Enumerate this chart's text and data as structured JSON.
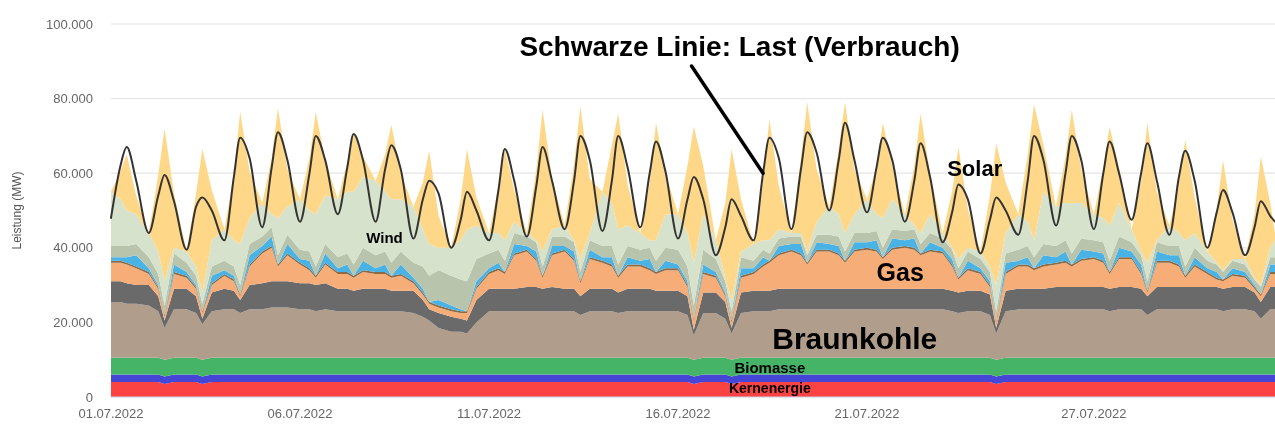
{
  "chart_data": {
    "type": "area",
    "stacked": true,
    "x": [
      "2022-07-01T00:00",
      "2022-07-01T06:00",
      "2022-07-01T10:00",
      "2022-07-01T16:00",
      "2022-07-02T00:00",
      "2022-07-02T06:00",
      "2022-07-02T10:00",
      "2022-07-02T16:00",
      "2022-07-03T00:00",
      "2022-07-03T06:00",
      "2022-07-03T10:00",
      "2022-07-03T16:00",
      "2022-07-04T00:00",
      "2022-07-04T06:00",
      "2022-07-04T10:00",
      "2022-07-04T16:00",
      "2022-07-05T00:00",
      "2022-07-05T06:00",
      "2022-07-05T10:00",
      "2022-07-05T16:00",
      "2022-07-06T00:00",
      "2022-07-06T06:00",
      "2022-07-06T10:00",
      "2022-07-06T16:00",
      "2022-07-07T00:00",
      "2022-07-07T06:00",
      "2022-07-07T10:00",
      "2022-07-07T16:00",
      "2022-07-08T00:00",
      "2022-07-08T06:00",
      "2022-07-08T10:00",
      "2022-07-08T16:00",
      "2022-07-09T00:00",
      "2022-07-09T06:00",
      "2022-07-09T10:00",
      "2022-07-09T16:00",
      "2022-07-10T00:00",
      "2022-07-10T06:00",
      "2022-07-10T10:00",
      "2022-07-10T16:00",
      "2022-07-11T00:00",
      "2022-07-11T06:00",
      "2022-07-11T10:00",
      "2022-07-11T16:00",
      "2022-07-12T00:00",
      "2022-07-12T06:00",
      "2022-07-12T10:00",
      "2022-07-12T16:00",
      "2022-07-13T00:00",
      "2022-07-13T06:00",
      "2022-07-13T10:00",
      "2022-07-13T16:00",
      "2022-07-14T00:00",
      "2022-07-14T06:00",
      "2022-07-14T10:00",
      "2022-07-14T16:00",
      "2022-07-15T00:00",
      "2022-07-15T06:00",
      "2022-07-15T10:00",
      "2022-07-15T16:00",
      "2022-07-16T00:00",
      "2022-07-16T06:00",
      "2022-07-16T10:00",
      "2022-07-16T16:00",
      "2022-07-17T00:00",
      "2022-07-17T06:00",
      "2022-07-17T10:00",
      "2022-07-17T16:00",
      "2022-07-18T00:00",
      "2022-07-18T06:00",
      "2022-07-18T10:00",
      "2022-07-18T16:00",
      "2022-07-19T00:00",
      "2022-07-19T06:00",
      "2022-07-19T10:00",
      "2022-07-19T16:00",
      "2022-07-20T00:00",
      "2022-07-20T06:00",
      "2022-07-20T10:00",
      "2022-07-20T16:00",
      "2022-07-21T00:00",
      "2022-07-21T06:00",
      "2022-07-21T10:00",
      "2022-07-21T16:00",
      "2022-07-22T00:00",
      "2022-07-22T06:00",
      "2022-07-22T10:00",
      "2022-07-22T16:00",
      "2022-07-23T00:00",
      "2022-07-23T06:00",
      "2022-07-23T10:00",
      "2022-07-23T16:00",
      "2022-07-24T00:00",
      "2022-07-24T06:00",
      "2022-07-24T10:00",
      "2022-07-24T16:00",
      "2022-07-25T00:00",
      "2022-07-25T06:00",
      "2022-07-25T10:00",
      "2022-07-25T16:00",
      "2022-07-26T00:00",
      "2022-07-26T06:00",
      "2022-07-26T10:00",
      "2022-07-26T16:00",
      "2022-07-27T00:00",
      "2022-07-27T06:00",
      "2022-07-27T10:00",
      "2022-07-27T16:00",
      "2022-07-28T00:00",
      "2022-07-28T06:00",
      "2022-07-28T10:00",
      "2022-07-28T16:00",
      "2022-07-29T00:00",
      "2022-07-29T06:00",
      "2022-07-29T10:00",
      "2022-07-29T16:00",
      "2022-07-30T00:00",
      "2022-07-30T06:00",
      "2022-07-30T10:00",
      "2022-07-30T16:00",
      "2022-07-31T00:00",
      "2022-07-31T06:00",
      "2022-07-31T10:00",
      "2022-07-31T16:00",
      "2022-07-31T19:00"
    ],
    "xlim": [
      "2022-07-01T00:00",
      "2022-07-31T19:00"
    ],
    "xticks": [
      {
        "value": "2022-07-01",
        "label": "01.07.2022"
      },
      {
        "value": "2022-07-06",
        "label": "06.07.2022"
      },
      {
        "value": "2022-07-11",
        "label": "11.07.2022"
      },
      {
        "value": "2022-07-16",
        "label": "16.07.2022"
      },
      {
        "value": "2022-07-21",
        "label": "21.07.2022"
      },
      {
        "value": "2022-07-27",
        "label": "27.07.2022"
      }
    ],
    "ylim": [
      0,
      100000
    ],
    "yticks": [
      0,
      {
        "value": 20000,
        "label": "20.000"
      },
      {
        "value": 40000,
        "label": "40.000"
      },
      {
        "value": 60000,
        "label": "60.000"
      },
      {
        "value": 80000,
        "label": "80.000"
      },
      {
        "value": 100000,
        "label": "100.000"
      }
    ],
    "grid": "y",
    "ylabel": "Leistung (MW)",
    "annotations": [
      {
        "text": "Schwarze Linie: Last (Verbrauch)",
        "x": "2022-07-18T06:00",
        "y": 60000
      }
    ],
    "series": [
      {
        "name": "Kernenergie",
        "color": "#fc4343",
        "values": [
          4000,
          4000,
          4000,
          4000,
          4000,
          4000,
          3500,
          4000,
          4000,
          4000,
          3500,
          4000,
          4000,
          4000,
          4000,
          4000,
          4000,
          4000,
          4000,
          4000,
          4000,
          4000,
          4000,
          4000,
          4000,
          4000,
          4000,
          4000,
          4000,
          4000,
          4000,
          4000,
          4000,
          4000,
          4000,
          4000,
          4000,
          4000,
          4000,
          4000,
          4000,
          4000,
          4000,
          4000,
          4000,
          4000,
          4000,
          4000,
          4000,
          4000,
          4000,
          4000,
          4000,
          4000,
          4000,
          4000,
          4000,
          4000,
          4000,
          4000,
          4000,
          4000,
          3500,
          4000,
          4000,
          4000,
          3500,
          4000,
          4000,
          4000,
          4000,
          4000,
          4000,
          4000,
          4000,
          4000,
          4000,
          4000,
          4000,
          4000,
          4000,
          4000,
          4000,
          4000,
          4000,
          4000,
          4000,
          4000,
          4000,
          4000,
          4000,
          4000,
          4000,
          4000,
          3500,
          4000,
          4000,
          4000,
          4000,
          4000,
          4000,
          4000,
          4000,
          4000,
          4000,
          4000,
          4000,
          4000,
          4000,
          4000,
          4000,
          4000,
          4000,
          4000,
          4000,
          4000,
          4000,
          4000,
          4000,
          4000,
          4000,
          4000,
          4000,
          4000,
          4000
        ]
      },
      {
        "color": "#4646d6",
        "values": [
          2000,
          2000,
          2000,
          2000,
          2000,
          2000,
          2000,
          2000,
          2000,
          2000,
          2000,
          2000,
          2000,
          2000,
          2000,
          2000,
          2000,
          2000,
          2000,
          2000,
          2000,
          2000,
          2000,
          2000,
          2000,
          2000,
          2000,
          2000,
          2000,
          2000,
          2000,
          2000,
          2000,
          2000,
          2000,
          2000,
          2000,
          2000,
          2000,
          2000,
          2000,
          2000,
          2000,
          2000,
          2000,
          2000,
          2000,
          2000,
          2000,
          2000,
          2000,
          2000,
          2000,
          2000,
          2000,
          2000,
          2000,
          2000,
          2000,
          2000,
          2000,
          2000,
          2000,
          2000,
          2000,
          2000,
          2000,
          2000,
          2000,
          2000,
          2000,
          2000,
          2000,
          2000,
          2000,
          2000,
          2000,
          2000,
          2000,
          2000,
          2000,
          2000,
          2000,
          2000,
          2000,
          2000,
          2000,
          2000,
          2000,
          2000,
          2000,
          2000,
          2000,
          2000,
          2000,
          2000,
          2000,
          2000,
          2000,
          2000,
          2000,
          2000,
          2000,
          2000,
          2000,
          2000,
          2000,
          2000,
          2000,
          2000,
          2000,
          2000,
          2000,
          2000,
          2000,
          2000,
          2000,
          2000,
          2000,
          2000,
          2000,
          2000,
          2000,
          2000,
          2000
        ]
      },
      {
        "name": "Biomasse",
        "color": "#46b466",
        "values": [
          4500,
          4500,
          4500,
          4500,
          4500,
          4500,
          4500,
          4500,
          4500,
          4500,
          4500,
          4500,
          4500,
          4500,
          4500,
          4500,
          4500,
          4500,
          4500,
          4500,
          4500,
          4500,
          4500,
          4500,
          4500,
          4500,
          4500,
          4500,
          4500,
          4500,
          4500,
          4500,
          4500,
          4500,
          4500,
          4500,
          4500,
          4500,
          4500,
          4500,
          4500,
          4500,
          4500,
          4500,
          4500,
          4500,
          4500,
          4500,
          4500,
          4500,
          4500,
          4500,
          4500,
          4500,
          4500,
          4500,
          4500,
          4500,
          4500,
          4500,
          4500,
          4500,
          4500,
          4500,
          4500,
          4500,
          4500,
          4500,
          4500,
          4500,
          4500,
          4500,
          4500,
          4500,
          4500,
          4500,
          4500,
          4500,
          4500,
          4500,
          4500,
          4500,
          4500,
          4500,
          4500,
          4500,
          4500,
          4500,
          4500,
          4500,
          4500,
          4500,
          4500,
          4500,
          4500,
          4500,
          4500,
          4500,
          4500,
          4500,
          4500,
          4500,
          4500,
          4500,
          4500,
          4500,
          4500,
          4500,
          4500,
          4500,
          4500,
          4500,
          4500,
          4500,
          4500,
          4500,
          4500,
          4500,
          4500,
          4500,
          4500,
          4500,
          4500,
          4500,
          4500
        ]
      },
      {
        "name": "Braunkohle",
        "color": "#b09d8c",
        "values": [
          15000,
          15000,
          14500,
          14500,
          14000,
          12500,
          8500,
          13000,
          13000,
          12000,
          9500,
          12500,
          13000,
          13000,
          12000,
          13000,
          13000,
          13500,
          13500,
          13500,
          13000,
          13000,
          12500,
          13000,
          12500,
          12500,
          12500,
          12500,
          12500,
          12500,
          12500,
          12500,
          12000,
          11000,
          10000,
          8000,
          7000,
          7000,
          6500,
          9500,
          12500,
          12500,
          12500,
          12500,
          12500,
          12500,
          12500,
          12500,
          12500,
          12500,
          11500,
          12500,
          12500,
          12500,
          12000,
          12500,
          12500,
          12500,
          12500,
          12500,
          12500,
          11500,
          6500,
          12000,
          12000,
          10500,
          7000,
          12000,
          12500,
          12500,
          12500,
          13000,
          13000,
          13000,
          13000,
          13000,
          13000,
          13000,
          13000,
          13000,
          13000,
          13000,
          13000,
          13000,
          13000,
          13000,
          13000,
          13000,
          13000,
          12500,
          12000,
          12500,
          12500,
          11500,
          7000,
          12500,
          13000,
          13000,
          13000,
          13000,
          13000,
          13000,
          13000,
          13000,
          13000,
          13000,
          12500,
          13000,
          13000,
          13000,
          11500,
          13000,
          13000,
          13000,
          13000,
          13000,
          13000,
          13000,
          12500,
          13000,
          13000,
          12500,
          10500,
          13000,
          13000
        ]
      },
      {
        "color": "#6a6a6a",
        "values": [
          5500,
          5500,
          5500,
          5000,
          5500,
          4000,
          2000,
          5500,
          5500,
          4500,
          1500,
          5000,
          5500,
          5000,
          3500,
          6500,
          7000,
          7000,
          7000,
          7000,
          7000,
          7000,
          7000,
          7000,
          6000,
          6000,
          5500,
          6000,
          6000,
          6000,
          5500,
          5500,
          6000,
          4500,
          3000,
          4000,
          4000,
          3500,
          3500,
          6000,
          6000,
          6000,
          6000,
          6000,
          6500,
          6500,
          6000,
          6500,
          6000,
          6000,
          5000,
          6000,
          6000,
          6000,
          5500,
          6000,
          6000,
          6000,
          5500,
          5500,
          5500,
          5000,
          1500,
          5500,
          5500,
          4500,
          1500,
          5500,
          5500,
          5500,
          5500,
          5500,
          5500,
          5500,
          5500,
          5500,
          5500,
          5500,
          5500,
          5500,
          5500,
          5500,
          5500,
          5500,
          5500,
          5500,
          5500,
          5500,
          5500,
          5500,
          5500,
          5500,
          5500,
          5500,
          1500,
          5500,
          5500,
          5500,
          5500,
          5500,
          6000,
          6000,
          6000,
          6000,
          6000,
          6000,
          6000,
          6000,
          6000,
          5500,
          5000,
          6000,
          6000,
          6000,
          6000,
          6000,
          6000,
          6000,
          6000,
          6000,
          6000,
          5000,
          4500,
          6000,
          6000
        ]
      },
      {
        "name": "Gas",
        "color": "#f6ad78",
        "values": [
          5000,
          5000,
          5000,
          4500,
          3000,
          2000,
          1000,
          4000,
          3000,
          2000,
          1500,
          2000,
          3500,
          2500,
          1000,
          5000,
          8000,
          9000,
          4000,
          7000,
          5000,
          3500,
          2000,
          5000,
          4000,
          4000,
          3500,
          4500,
          4000,
          4000,
          3500,
          4000,
          2000,
          1500,
          1500,
          1500,
          1500,
          1500,
          2000,
          3000,
          4000,
          5000,
          4000,
          9000,
          9500,
          7000,
          3000,
          8500,
          10000,
          7500,
          3500,
          8000,
          7000,
          6000,
          4000,
          6000,
          6000,
          5000,
          4500,
          5500,
          5500,
          2500,
          2500,
          5000,
          4000,
          1500,
          1500,
          4000,
          4500,
          6500,
          7500,
          9000,
          10000,
          9000,
          6500,
          10000,
          10000,
          9000,
          7000,
          10000,
          10500,
          10000,
          8000,
          10500,
          11000,
          10500,
          9000,
          10000,
          9500,
          6500,
          3500,
          5500,
          4500,
          2000,
          1500,
          4500,
          6000,
          6000,
          5000,
          6000,
          6000,
          6500,
          5500,
          7000,
          7500,
          6500,
          4000,
          7500,
          7500,
          4000,
          1000,
          6500,
          6500,
          5500,
          2500,
          5500,
          3500,
          2000,
          2000,
          3000,
          2500,
          1000,
          1500,
          3500,
          3500
        ]
      },
      {
        "color": "#8c6a45",
        "values": [
          500,
          500,
          500,
          500,
          500,
          500,
          500,
          500,
          500,
          500,
          500,
          500,
          500,
          500,
          500,
          500,
          500,
          500,
          500,
          500,
          500,
          500,
          500,
          500,
          500,
          500,
          500,
          500,
          500,
          500,
          500,
          500,
          500,
          500,
          500,
          500,
          500,
          500,
          500,
          500,
          500,
          500,
          500,
          500,
          500,
          500,
          500,
          500,
          500,
          500,
          500,
          500,
          500,
          500,
          500,
          500,
          500,
          500,
          500,
          500,
          500,
          500,
          500,
          500,
          500,
          500,
          500,
          500,
          500,
          500,
          500,
          500,
          500,
          500,
          500,
          500,
          500,
          500,
          500,
          500,
          500,
          500,
          500,
          500,
          500,
          500,
          500,
          500,
          500,
          500,
          500,
          500,
          500,
          500,
          500,
          500,
          500,
          500,
          500,
          500,
          500,
          500,
          500,
          500,
          500,
          500,
          500,
          500,
          500,
          500,
          500,
          500,
          500,
          500,
          500,
          500,
          500,
          500,
          500,
          500,
          500,
          500,
          500,
          500,
          500
        ]
      },
      {
        "color": "#4ab3e6",
        "values": [
          1000,
          1000,
          1500,
          3000,
          1000,
          500,
          0,
          2000,
          1000,
          500,
          0,
          2000,
          1000,
          1000,
          0,
          2500,
          1500,
          2500,
          0,
          2500,
          1000,
          2000,
          0,
          2500,
          1000,
          2000,
          0,
          2500,
          1000,
          2000,
          0,
          2500,
          1000,
          1000,
          0,
          1500,
          1000,
          500,
          0,
          1500,
          1000,
          1500,
          0,
          2500,
          1000,
          2000,
          0,
          2000,
          1000,
          2000,
          0,
          2000,
          1000,
          2000,
          0,
          2000,
          1000,
          2500,
          0,
          2000,
          1000,
          1000,
          0,
          2000,
          1000,
          500,
          0,
          2000,
          1000,
          2000,
          0,
          2000,
          1500,
          2500,
          0,
          2000,
          1500,
          2000,
          0,
          2000,
          1500,
          2500,
          0,
          2500,
          1500,
          2500,
          0,
          2000,
          1000,
          1500,
          0,
          2000,
          1000,
          1000,
          0,
          2500,
          1000,
          2000,
          0,
          2500,
          1500,
          2500,
          0,
          2500,
          1500,
          2000,
          0,
          2500,
          1500,
          2000,
          0,
          2500,
          1500,
          2500,
          0,
          2000,
          1000,
          1500,
          0,
          1500,
          1000,
          500,
          0,
          2000,
          2000
        ]
      },
      {
        "color": "#b9c4ad",
        "values": [
          3000,
          3000,
          3000,
          3000,
          3000,
          3000,
          2500,
          3000,
          2500,
          2500,
          2000,
          2500,
          2500,
          2500,
          2500,
          3000,
          2500,
          2500,
          2500,
          2500,
          2500,
          2500,
          2500,
          2500,
          3000,
          3000,
          3000,
          3500,
          3500,
          3500,
          3500,
          3500,
          4000,
          6000,
          7000,
          8000,
          8000,
          8000,
          8000,
          6000,
          4000,
          3500,
          3000,
          3000,
          2500,
          2500,
          2500,
          2500,
          2500,
          2500,
          2500,
          2500,
          3000,
          3000,
          3000,
          3000,
          3000,
          3000,
          3000,
          3500,
          4000,
          4000,
          3500,
          4000,
          3500,
          3000,
          2500,
          3000,
          2000,
          2000,
          2000,
          2000,
          2000,
          2000,
          2000,
          2000,
          2500,
          2500,
          2500,
          2500,
          2500,
          2500,
          2500,
          2500,
          2500,
          2500,
          2500,
          2500,
          2500,
          2500,
          2500,
          2500,
          2500,
          2500,
          2500,
          2500,
          3000,
          3000,
          3000,
          3000,
          3000,
          3000,
          3000,
          3000,
          3000,
          3000,
          3000,
          3000,
          2500,
          2500,
          2500,
          2500,
          2500,
          2500,
          2500,
          2500,
          2000,
          2000,
          2000,
          2000,
          2000,
          1500,
          2000,
          2000,
          2000
        ]
      },
      {
        "name": "Wind",
        "color": "#d6e2cb",
        "values": [
          14500,
          12500,
          9500,
          8000,
          6500,
          6000,
          6500,
          1500,
          3000,
          2500,
          3000,
          7000,
          8500,
          7000,
          11000,
          7000,
          9000,
          3500,
          10000,
          7500,
          13500,
          11000,
          14000,
          13000,
          15500,
          16500,
          19500,
          19000,
          20000,
          16000,
          17000,
          14000,
          15000,
          10000,
          8500,
          6000,
          7500,
          10500,
          14000,
          9000,
          5500,
          4500,
          5500,
          3000,
          1000,
          500,
          4000,
          2000,
          3000,
          500,
          3500,
          2000,
          14500,
          11500,
          9500,
          5500,
          4500,
          2000,
          5500,
          9000,
          9500,
          9000,
          11500,
          9500,
          5000,
          1000,
          3000,
          1500,
          4500,
          2500,
          3500,
          2500,
          1000,
          1000,
          1000,
          3500,
          7500,
          6000,
          5000,
          5000,
          9000,
          4500,
          8000,
          8000,
          4500,
          1000,
          3000,
          5000,
          1500,
          500,
          2500,
          1000,
          2000,
          1500,
          7000,
          5500,
          9500,
          6500,
          4500,
          14000,
          10500,
          10000,
          13500,
          9500,
          7000,
          6500,
          9500,
          9000,
          3500,
          1000,
          5000,
          500,
          5500,
          3500,
          7000,
          4000,
          2500,
          500,
          500,
          500,
          1500,
          500,
          500,
          2500,
          4500
        ]
      },
      {
        "name": "Solar",
        "color": "#fed888",
        "values": [
          0,
          7500,
          15000,
          5000,
          0,
          20500,
          41000,
          14500,
          0,
          19500,
          38500,
          13500,
          0,
          17500,
          35500,
          12500,
          0,
          15000,
          29500,
          10000,
          0,
          14000,
          27500,
          9500,
          0,
          8000,
          16000,
          5500,
          0,
          10000,
          20000,
          7000,
          0,
          12500,
          25000,
          8500,
          0,
          11000,
          21500,
          7500,
          0,
          12500,
          24500,
          8500,
          0,
          19000,
          38000,
          13500,
          0,
          20500,
          41000,
          14500,
          0,
          15500,
          31000,
          11000,
          0,
          15500,
          31500,
          11000,
          0,
          18000,
          36500,
          13000,
          0,
          20000,
          40500,
          14000,
          0,
          16500,
          32500,
          11500,
          0,
          20000,
          40000,
          14000,
          0,
          17500,
          35000,
          12000,
          0,
          12500,
          25500,
          9000,
          0,
          16000,
          32000,
          11000,
          0,
          15000,
          30000,
          10500,
          0,
          19000,
          38000,
          13500,
          0,
          18000,
          36500,
          12500,
          0,
          12500,
          25000,
          9000,
          0,
          13500,
          26500,
          9500,
          0,
          19000,
          37500,
          13000,
          0,
          13500,
          27000,
          9500,
          0,
          14500,
          29500,
          10500,
          0,
          17000,
          34500,
          12000,
          2000
        ]
      },
      {
        "type": "line",
        "color": "#333333",
        "values": [
          48000,
          62000,
          67000,
          58000,
          44000,
          54000,
          59500,
          52500,
          39500,
          51000,
          53500,
          50000,
          42000,
          59000,
          69500,
          64000,
          45500,
          61500,
          71000,
          63500,
          47000,
          60000,
          70000,
          63500,
          49000,
          61500,
          70500,
          63500,
          47000,
          61000,
          67500,
          61000,
          42500,
          53000,
          58000,
          54500,
          40000,
          47500,
          55000,
          50000,
          42000,
          55500,
          66500,
          58000,
          43000,
          56500,
          67000,
          58000,
          45000,
          58000,
          70000,
          63500,
          44500,
          58000,
          70000,
          61500,
          45500,
          60000,
          68500,
          60500,
          42500,
          53000,
          59000,
          53000,
          38000,
          45500,
          53000,
          48500,
          42000,
          60000,
          69500,
          64000,
          45000,
          61000,
          71000,
          65500,
          50000,
          63500,
          73500,
          63500,
          49500,
          61500,
          69500,
          63500,
          47000,
          58000,
          68000,
          59000,
          41500,
          49500,
          57000,
          53000,
          38500,
          47500,
          53500,
          50000,
          43500,
          58000,
          70000,
          63500,
          46000,
          60000,
          70000,
          63500,
          45000,
          60000,
          68500,
          60000,
          47500,
          60000,
          68000,
          58000,
          43500,
          59000,
          66000,
          58000,
          40000,
          49500,
          55500,
          49500,
          38000,
          45500,
          52500,
          48500,
          47000
        ]
      }
    ]
  }
}
